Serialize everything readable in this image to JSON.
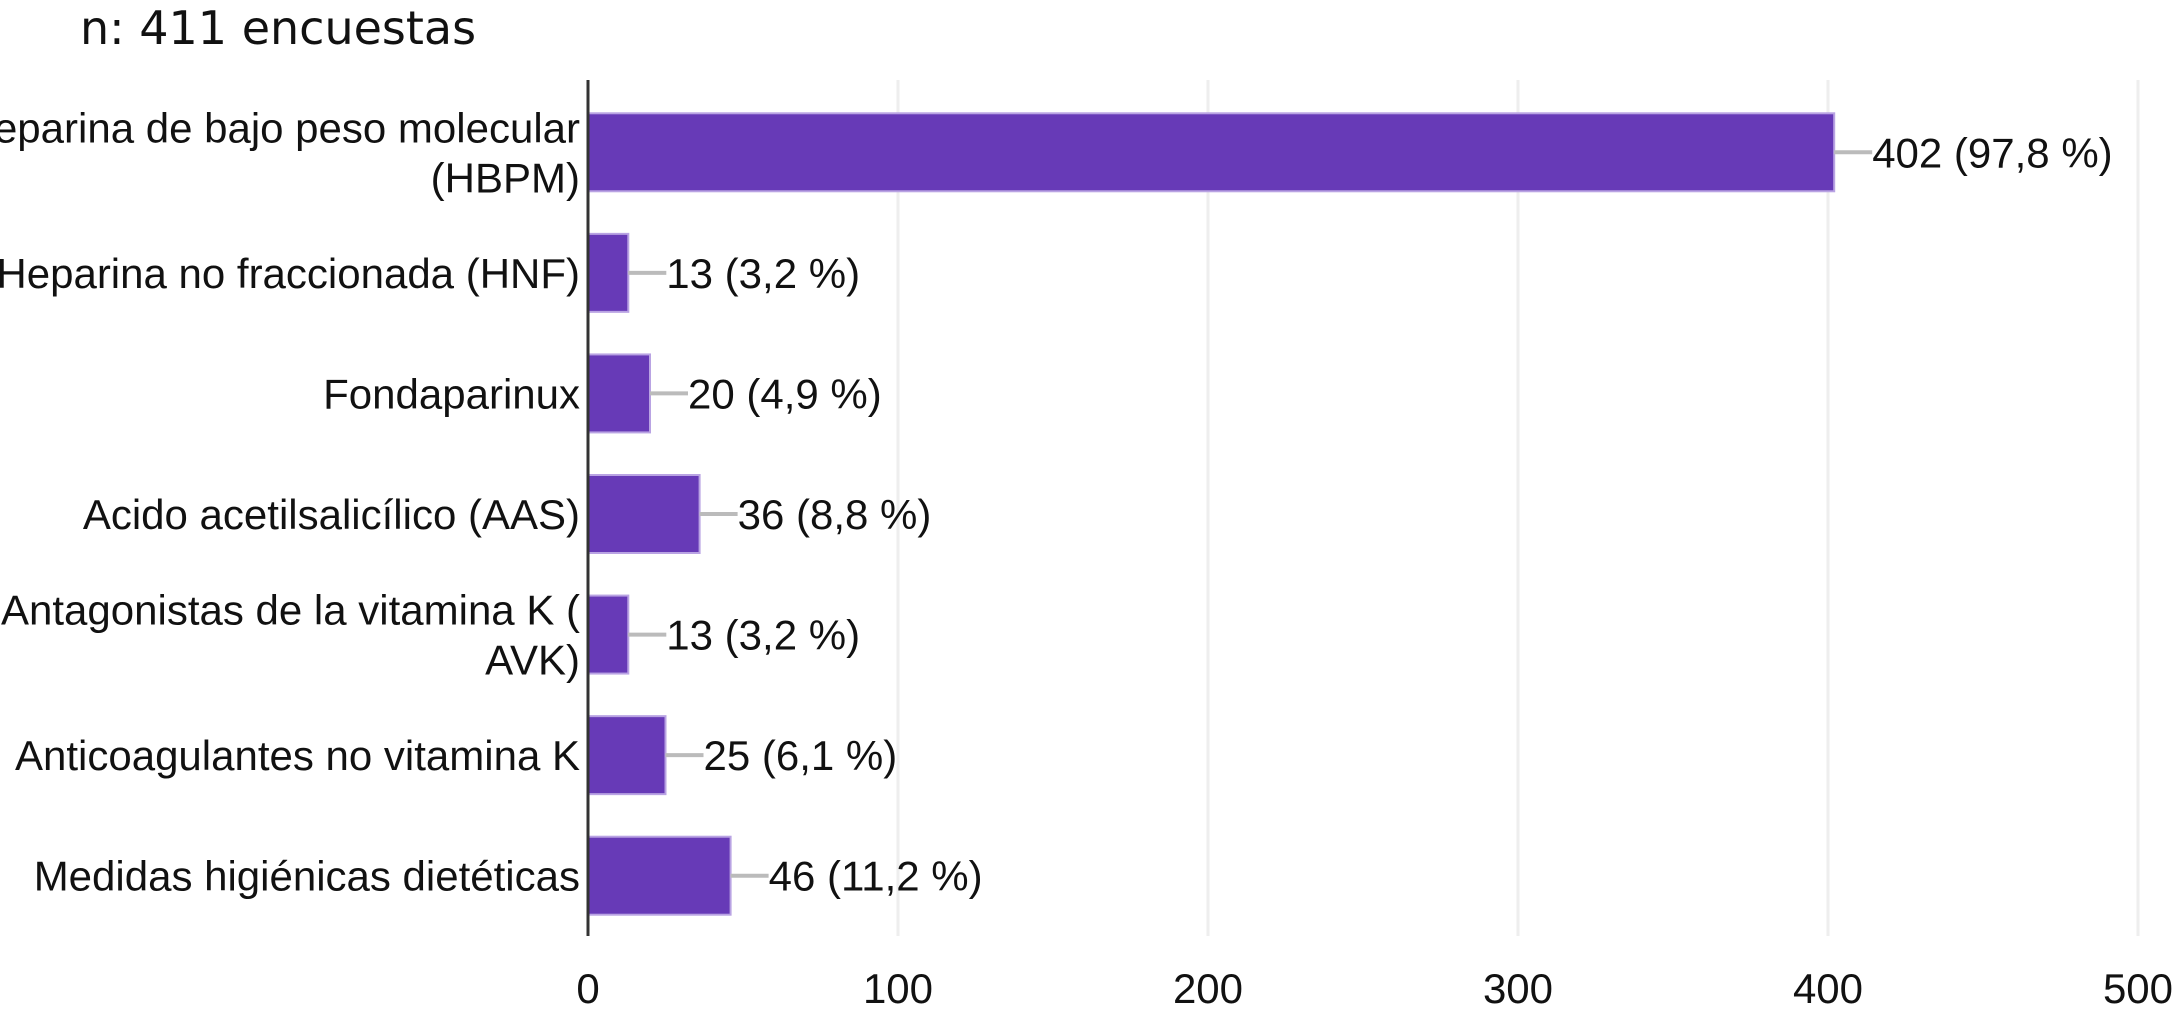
{
  "chart_data": {
    "type": "bar",
    "orientation": "horizontal",
    "title": "n: 411 encuestas",
    "categories": [
      [
        "Heparina de bajo peso molecular",
        "(HBPM)"
      ],
      [
        "Heparina no fraccionada (HNF)"
      ],
      [
        "Fondaparinux"
      ],
      [
        "Acido acetilsalicílico (AAS)"
      ],
      [
        "Antagonistas de la vitamina K (",
        "AVK)"
      ],
      [
        "Anticoagulantes no vitamina K"
      ],
      [
        "Medidas higiénicas dietéticas"
      ]
    ],
    "values": [
      402,
      13,
      20,
      36,
      13,
      25,
      46
    ],
    "value_labels": [
      "402 (97,8 %)",
      "13 (3,2 %)",
      "20 (4,9 %)",
      "36 (8,8 %)",
      "13 (3,2 %)",
      "25 (6,1 %)",
      "46 (11,2 %)"
    ],
    "xlim": [
      0,
      500
    ],
    "xticks": [
      "0",
      "100",
      "200",
      "300",
      "400",
      "500"
    ],
    "xlabel": "",
    "ylabel": "",
    "grid": true,
    "colors": {
      "bar": "#673AB7",
      "bar_edge": "#B9A3E3",
      "leader": "#BBBBBB",
      "grid": "#EEEEEE",
      "axis": "#333333"
    }
  }
}
